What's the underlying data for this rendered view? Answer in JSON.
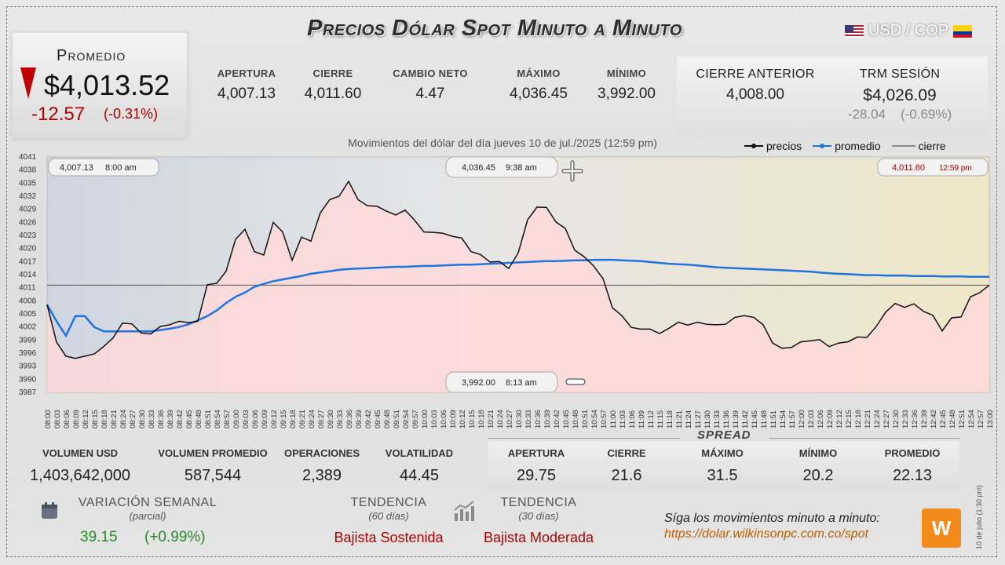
{
  "header": {
    "title": "Precios Dólar Spot Minuto a Minuto",
    "pair": "USD / COP"
  },
  "average": {
    "label": "Promedio",
    "value": "$4,013.52",
    "change": "-12.57",
    "change_pct": "(-0.31%)"
  },
  "stats": [
    {
      "label": "APERTURA",
      "value": "4,007.13"
    },
    {
      "label": "CIERRE",
      "value": "4,011.60"
    },
    {
      "label": "CAMBIO NETO",
      "value": "4.47"
    },
    {
      "label": "MÁXIMO",
      "value": "4,036.45"
    },
    {
      "label": "MÍNIMO",
      "value": "3,992.00"
    }
  ],
  "previous": {
    "label": "CIERRE ANTERIOR",
    "value": "4,008.00"
  },
  "trm": {
    "label": "TRM SESIÓN",
    "value": "$4,026.09",
    "change": "-28.04",
    "change_pct": "(-0.69%)"
  },
  "chart_subtitle": "Movimientos del dólar del día jueves 10 de jul./2025 (12:59 pm)",
  "legend": {
    "precios": "precios",
    "promedio": "promedio",
    "cierre": "cierre"
  },
  "callouts": {
    "open": {
      "value": "4,007.13",
      "time": "8:00 am"
    },
    "high": {
      "value": "4,036.45",
      "time": "9:38 am"
    },
    "close": {
      "value": "4,011.60",
      "time": "12:59 pm"
    },
    "low": {
      "value": "3,992.00",
      "time": "8:13 am"
    }
  },
  "volume": [
    {
      "label": "VOLUMEN USD",
      "value": "1,403,642,000"
    },
    {
      "label": "VOLUMEN PROMEDIO",
      "value": "587,544"
    },
    {
      "label": "OPERACIONES",
      "value": "2,389"
    },
    {
      "label": "VOLATILIDAD",
      "value": "44.45"
    }
  ],
  "spread": {
    "title": "SPREAD",
    "items": [
      {
        "label": "APERTURA",
        "value": "29.75"
      },
      {
        "label": "CIERRE",
        "value": "21.6"
      },
      {
        "label": "MÁXIMO",
        "value": "31.5"
      },
      {
        "label": "MÍNIMO",
        "value": "20.2"
      },
      {
        "label": "PROMEDIO",
        "value": "22.13"
      }
    ]
  },
  "weekly": {
    "label": "VARIACIÓN SEMANAL",
    "sub": "(parcial)",
    "value": "39.15",
    "pct": "(+0.99%)"
  },
  "trend60": {
    "label": "TENDENCIA",
    "sub": "(60 días)",
    "value": "Bajista Sostenida"
  },
  "trend30": {
    "label": "TENDENCIA",
    "sub": "(30 días)",
    "value": "Bajista Moderada"
  },
  "footer": {
    "follow": "Síga los movimientos minuto a minuto:",
    "url": "https://dolar.wilkinsonpc.com.co/spot",
    "side_note": "10 de julio (1:30 pm)"
  },
  "colors": {
    "price": "#111111",
    "average": "#1f74e0",
    "close_line": "#444444",
    "fill": "#ffd9d9",
    "down": "#c00000"
  },
  "chart_data": {
    "type": "line",
    "ylim": [
      3987,
      4041
    ],
    "yticks": [
      4041,
      4038,
      4035,
      4032,
      4029,
      4026,
      4023,
      4020,
      4017,
      4014,
      4011,
      4008,
      4005,
      4002,
      3999,
      3996,
      3993,
      3990,
      3987
    ],
    "x": [
      "08:00",
      "08:03",
      "08:06",
      "08:09",
      "08:12",
      "08:15",
      "08:18",
      "08:21",
      "08:24",
      "08:27",
      "08:30",
      "08:33",
      "08:36",
      "08:39",
      "08:42",
      "08:45",
      "08:48",
      "08:51",
      "08:54",
      "08:57",
      "09:00",
      "09:03",
      "09:06",
      "09:09",
      "09:12",
      "09:15",
      "09:18",
      "09:21",
      "09:24",
      "09:27",
      "09:30",
      "09:33",
      "09:36",
      "09:39",
      "09:42",
      "09:45",
      "09:48",
      "09:51",
      "09:54",
      "09:57",
      "10:00",
      "10:03",
      "10:06",
      "10:09",
      "10:12",
      "10:15",
      "10:18",
      "10:21",
      "10:24",
      "10:27",
      "10:30",
      "10:33",
      "10:36",
      "10:39",
      "10:42",
      "10:45",
      "10:48",
      "10:51",
      "10:54",
      "10:57",
      "11:00",
      "11:03",
      "11:06",
      "11:09",
      "11:12",
      "11:15",
      "11:18",
      "11:21",
      "11:24",
      "11:27",
      "11:30",
      "11:33",
      "11:36",
      "11:39",
      "11:42",
      "11:45",
      "11:48",
      "11:51",
      "11:54",
      "11:57",
      "12:00",
      "12:03",
      "12:06",
      "12:09",
      "12:12",
      "12:15",
      "12:18",
      "12:21",
      "12:24",
      "12:27",
      "12:30",
      "12:33",
      "12:36",
      "12:39",
      "12:42",
      "12:45",
      "12:48",
      "12:51",
      "12:54",
      "12:57",
      "13:00"
    ],
    "series": [
      {
        "name": "precios",
        "values": [
          4007.1,
          3998.5,
          3995.3,
          3994.8,
          3995.3,
          3995.8,
          3997.5,
          3999.5,
          4002.9,
          4002.7,
          4000.6,
          4000.4,
          4002.1,
          4002.5,
          4003.3,
          4003.0,
          4003.3,
          4011.7,
          4012.0,
          4014.8,
          4022.1,
          4024.4,
          4019.3,
          4018.5,
          4026.0,
          4023.8,
          4017.3,
          4022.6,
          4021.7,
          4028.2,
          4031.2,
          4032.0,
          4035.4,
          4031.2,
          4029.8,
          4029.7,
          4028.6,
          4027.7,
          4028.8,
          4026.5,
          4023.8,
          4023.7,
          4023.5,
          4022.8,
          4022.4,
          4019.3,
          4018.6,
          4016.9,
          4017.0,
          4015.4,
          4019.0,
          4026.6,
          4029.5,
          4029.4,
          4026.1,
          4024.6,
          4019.6,
          4018.1,
          4016.0,
          4013.1,
          4006.4,
          4004.6,
          4001.9,
          4001.5,
          4001.5,
          4000.5,
          4001.7,
          4003.1,
          4002.4,
          4003.1,
          4002.6,
          4002.5,
          4002.6,
          4004.2,
          4004.6,
          4004.2,
          4002.5,
          3998.3,
          3997.1,
          3997.3,
          3998.6,
          3998.8,
          3999.1,
          3997.5,
          3998.3,
          3998.6,
          3999.7,
          3999.6,
          4002.1,
          4005.4,
          4007.4,
          4006.5,
          4007.3,
          4005.6,
          4004.7,
          4001.1,
          4004.1,
          4004.3,
          4008.9,
          4009.9,
          4011.6
        ]
      },
      {
        "name": "promedio",
        "values": [
          4007.1,
          4003.3,
          4000.0,
          4004.5,
          4004.5,
          4002.0,
          4001.0,
          4001.0,
          4001.0,
          4001.0,
          4001.0,
          4001.0,
          4001.3,
          4001.6,
          4002.0,
          4002.6,
          4003.5,
          4004.5,
          4005.8,
          4007.5,
          4008.9,
          4009.9,
          4011.2,
          4011.9,
          4012.5,
          4012.9,
          4013.3,
          4013.7,
          4014.2,
          4014.5,
          4014.8,
          4015.1,
          4015.3,
          4015.4,
          4015.5,
          4015.6,
          4015.7,
          4015.8,
          4015.8,
          4015.9,
          4016.0,
          4016.0,
          4016.1,
          4016.2,
          4016.3,
          4016.3,
          4016.4,
          4016.5,
          4016.6,
          4016.7,
          4016.8,
          4016.9,
          4017.0,
          4017.1,
          4017.1,
          4017.2,
          4017.3,
          4017.3,
          4017.4,
          4017.4,
          4017.4,
          4017.3,
          4017.2,
          4017.1,
          4016.9,
          4016.7,
          4016.5,
          4016.4,
          4016.3,
          4016.1,
          4015.9,
          4015.7,
          4015.6,
          4015.5,
          4015.4,
          4015.3,
          4015.2,
          4015.1,
          4015.0,
          4014.9,
          4014.8,
          4014.7,
          4014.5,
          4014.3,
          4014.2,
          4014.1,
          4014.0,
          4013.9,
          4013.9,
          4013.8,
          4013.8,
          4013.8,
          4013.7,
          4013.7,
          4013.7,
          4013.6,
          4013.6,
          4013.6,
          4013.5,
          4013.5,
          4013.5
        ]
      }
    ],
    "close_line": 4011.6,
    "grid": false,
    "legend_position": "top-right"
  }
}
